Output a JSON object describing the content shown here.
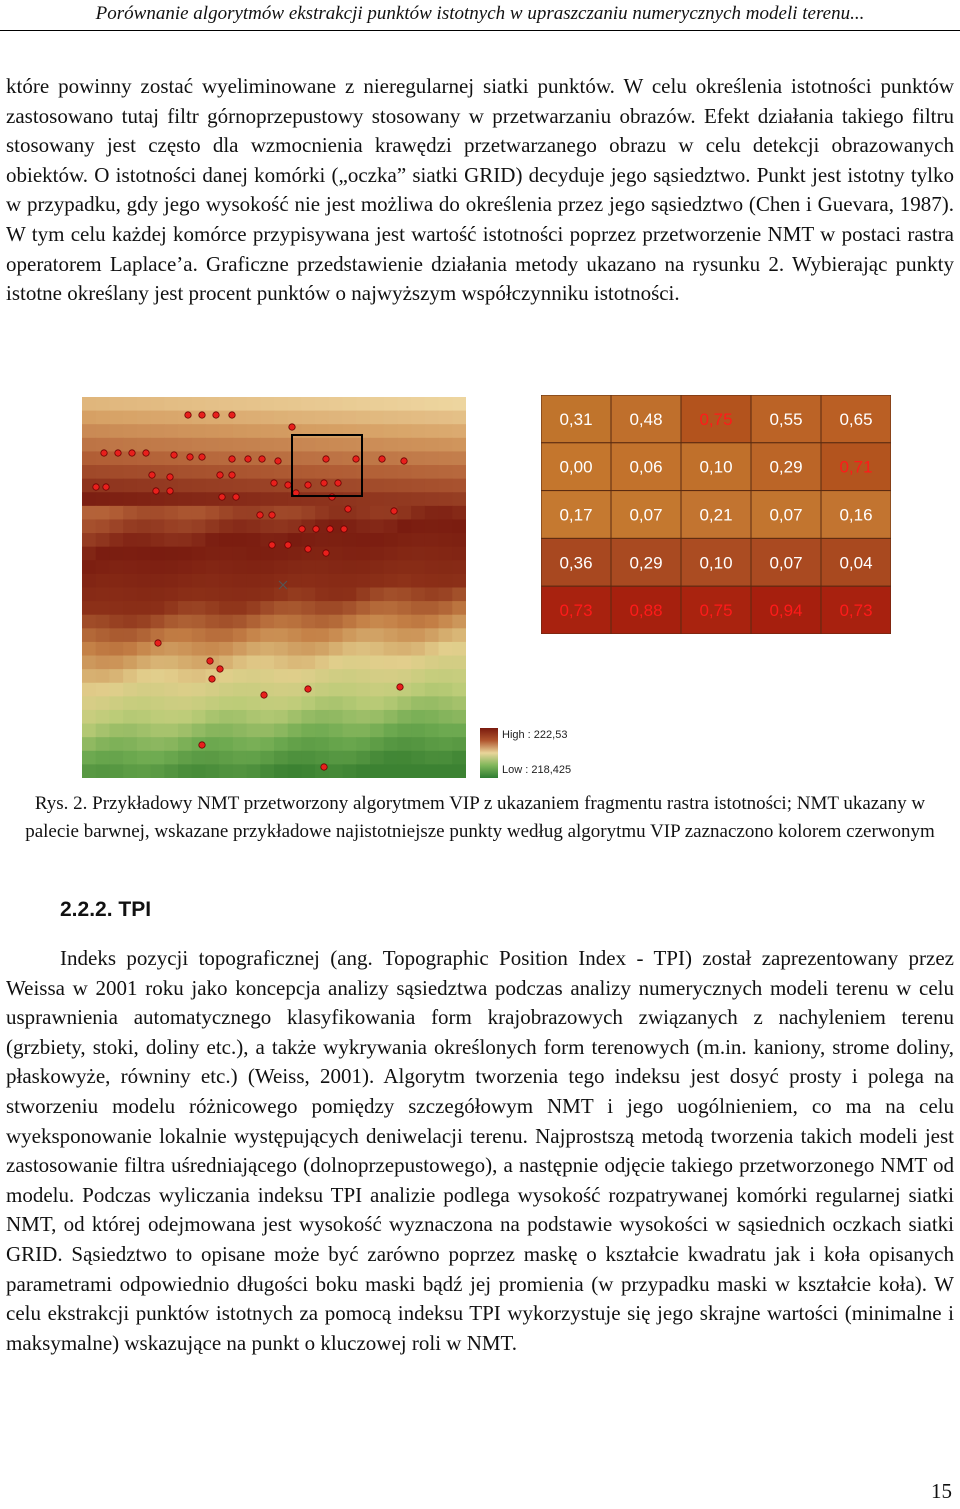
{
  "header": {
    "running_title": "Porównanie algorytmów ekstrakcji punktów istotnych w upraszczaniu numerycznych modeli terenu..."
  },
  "paragraph_1": "które powinny zostać wyeliminowane z nieregularnej siatki punktów. W celu określenia istotności punktów zastosowano tutaj filtr górnoprzepustowy stosowany w przetwarzaniu obrazów. Efekt działania takiego filtru stosowany jest często dla wzmocnienia krawędzi przetwarzanego obrazu w celu detekcji obrazowanych obiektów. O istotności danej komórki („oczka” siatki GRID) decyduje jego sąsiedztwo. Punkt jest istotny tylko w przypadku, gdy jego wysokość nie jest możliwa do określenia przez jego sąsiedztwo (Chen i Guevara, 1987). W tym celu każdej komórce przypisywana jest wartość istotności poprzez przetworzenie NMT w postaci rastra operatorem Laplace’a. Graficzne przedstawienie działania metody ukazano na rysunku 2. Wybierając punkty istotne określany jest procent punktów o najwyższym współczynniku istotności.",
  "figure": {
    "legend": {
      "high_label": "High : 222,53",
      "low_label": "Low : 218,425"
    },
    "significance_grid": {
      "rows": [
        [
          "0,31",
          "0,48",
          "0,75",
          "0,55",
          "0,65"
        ],
        [
          "0,00",
          "0,06",
          "0,10",
          "0,29",
          "0,71"
        ],
        [
          "0,17",
          "0,07",
          "0,21",
          "0,07",
          "0,16"
        ],
        [
          "0,36",
          "0,29",
          "0,10",
          "0,07",
          "0,04"
        ],
        [
          "0,73",
          "0,88",
          "0,75",
          "0,94",
          "0,73"
        ]
      ],
      "highlighted": [
        [
          false,
          false,
          true,
          false,
          false
        ],
        [
          false,
          false,
          false,
          false,
          true
        ],
        [
          false,
          false,
          false,
          false,
          false
        ],
        [
          false,
          false,
          false,
          false,
          false
        ],
        [
          true,
          true,
          true,
          true,
          true
        ]
      ],
      "cell_colors": [
        [
          "#c0742c",
          "#bf6f2c",
          "#b3531d",
          "#bb6326",
          "#ba5f24"
        ],
        [
          "#c4762d",
          "#c2722c",
          "#c0702b",
          "#bb6527",
          "#b3541e"
        ],
        [
          "#c57930",
          "#c4782f",
          "#c27430",
          "#c2752f",
          "#c27430"
        ],
        [
          "#a84820",
          "#a94a21",
          "#ab4c22",
          "#aa4a21",
          "#a9491f"
        ],
        [
          "#a8220f",
          "#a6200e",
          "#a9230f",
          "#a61f0e",
          "#a8210f"
        ]
      ],
      "text_color": "#ffffff",
      "highlight_text_color": "#ff1a1a"
    },
    "marker_color": "#e8201c"
  },
  "caption": "Rys. 2. Przykładowy NMT przetworzony algorytmem VIP z ukazaniem fragmentu rastra istotności; NMT ukazany w palecie barwnej, wskazane przykładowe najistotniejsze punkty według algorytmu VIP zaznaczono kolorem czerwonym",
  "section_heading": "2.2.2. TPI",
  "paragraph_2": "Indeks pozycji topograficznej (ang. Topographic Position Index - TPI) został zaprezentowany przez Weissa w 2001 roku jako koncepcja analizy sąsiedztwa podczas analizy numerycznych modeli terenu w celu usprawnienia automatycznego klasyfikowania form krajobrazowych związanych z nachyleniem terenu (grzbiety, stoki, doliny etc.), a także wykrywania określonych form terenowych (m.in. kaniony, strome doliny, płaskowyże, równiny etc.) (Weiss, 2001). Algorytm tworzenia tego indeksu jest dosyć prosty i polega na stworzeniu modelu różnicowego pomiędzy szczegółowym NMT i jego uogólnieniem, co ma na celu wyeksponowanie lokalnie występujących deniwelacji terenu. Najprostszą metodą tworzenia takich modeli jest zastosowanie filtra uśredniającego (dolnoprzepustowego), a następnie odjęcie takiego przetworzonego NMT od modelu. Podczas wyliczania indeksu TPI analizie podlega wysokość rozpatrywanej komórki regularnej siatki NMT, od której odejmowana jest wysokość wyznaczona na podstawie wysokości w sąsiednich oczkach siatki GRID. Sąsiedztwo to opisane może być zarówno poprzez maskę o kształcie kwadratu jak i koła opisanych parametrami odpowiednio długości boku maski bądź jej promienia (w przypadku maski w kształcie koła). W celu ekstrakcji punktów istotnych za pomocą indeksu TPI wykorzystuje się jego skrajne wartości (minimalne i maksymalne) wskazujące na punkt o kluczowej roli w NMT.",
  "page_number": "15"
}
